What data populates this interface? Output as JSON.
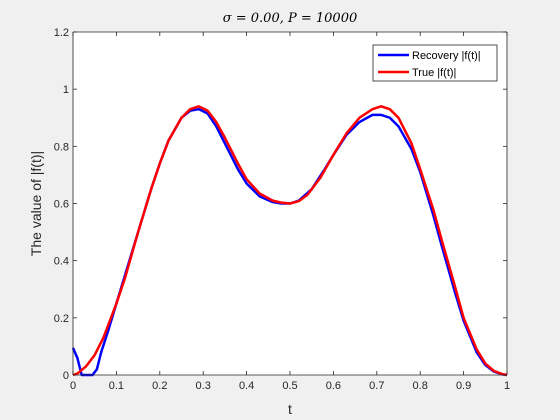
{
  "chart_data": {
    "type": "line",
    "title": "σ = 0.00,    P = 10000",
    "xlabel": "t",
    "ylabel": "The value of |f(t)|",
    "xlim": [
      0,
      1
    ],
    "ylim": [
      0,
      1.2
    ],
    "xticks": [
      "0",
      "0.1",
      "0.2",
      "0.3",
      "0.4",
      "0.5",
      "0.6",
      "0.7",
      "0.8",
      "0.9",
      "1"
    ],
    "yticks": [
      "0",
      "0.2",
      "0.4",
      "0.6",
      "0.8",
      "1",
      "1.2"
    ],
    "grid": false,
    "legend_position": "top-right",
    "series": [
      {
        "name": "Recovery |f(t)|",
        "color": "#0000ff",
        "x": [
          0,
          0.01,
          0.02,
          0.03,
          0.045,
          0.055,
          0.065,
          0.08,
          0.1,
          0.12,
          0.15,
          0.18,
          0.2,
          0.22,
          0.25,
          0.27,
          0.29,
          0.31,
          0.33,
          0.35,
          0.38,
          0.4,
          0.43,
          0.46,
          0.48,
          0.5,
          0.52,
          0.55,
          0.58,
          0.6,
          0.63,
          0.66,
          0.69,
          0.71,
          0.73,
          0.75,
          0.78,
          0.8,
          0.83,
          0.85,
          0.88,
          0.9,
          0.93,
          0.95,
          0.97,
          0.99,
          1.0
        ],
        "y": [
          0.095,
          0.06,
          0.0,
          0.0,
          0.0,
          0.02,
          0.08,
          0.15,
          0.25,
          0.35,
          0.5,
          0.65,
          0.74,
          0.82,
          0.9,
          0.925,
          0.93,
          0.915,
          0.87,
          0.81,
          0.72,
          0.67,
          0.625,
          0.605,
          0.6,
          0.6,
          0.61,
          0.65,
          0.72,
          0.77,
          0.84,
          0.885,
          0.91,
          0.91,
          0.9,
          0.87,
          0.79,
          0.71,
          0.56,
          0.45,
          0.29,
          0.19,
          0.08,
          0.035,
          0.012,
          0.002,
          0.0
        ]
      },
      {
        "name": "True |f(t)|",
        "color": "#ff0000",
        "x": [
          0,
          0.01,
          0.03,
          0.05,
          0.07,
          0.1,
          0.12,
          0.15,
          0.18,
          0.2,
          0.22,
          0.25,
          0.27,
          0.29,
          0.31,
          0.33,
          0.35,
          0.38,
          0.4,
          0.43,
          0.46,
          0.48,
          0.5,
          0.52,
          0.54,
          0.57,
          0.6,
          0.63,
          0.66,
          0.69,
          0.71,
          0.73,
          0.75,
          0.78,
          0.8,
          0.83,
          0.85,
          0.88,
          0.9,
          0.93,
          0.95,
          0.97,
          0.99,
          1.0
        ],
        "y": [
          0.0,
          0.005,
          0.03,
          0.07,
          0.13,
          0.25,
          0.34,
          0.5,
          0.65,
          0.74,
          0.82,
          0.9,
          0.93,
          0.94,
          0.925,
          0.885,
          0.83,
          0.74,
          0.685,
          0.635,
          0.61,
          0.603,
          0.6,
          0.608,
          0.63,
          0.69,
          0.77,
          0.845,
          0.9,
          0.93,
          0.94,
          0.93,
          0.9,
          0.81,
          0.72,
          0.58,
          0.47,
          0.31,
          0.2,
          0.09,
          0.04,
          0.014,
          0.003,
          0.0
        ]
      }
    ]
  }
}
